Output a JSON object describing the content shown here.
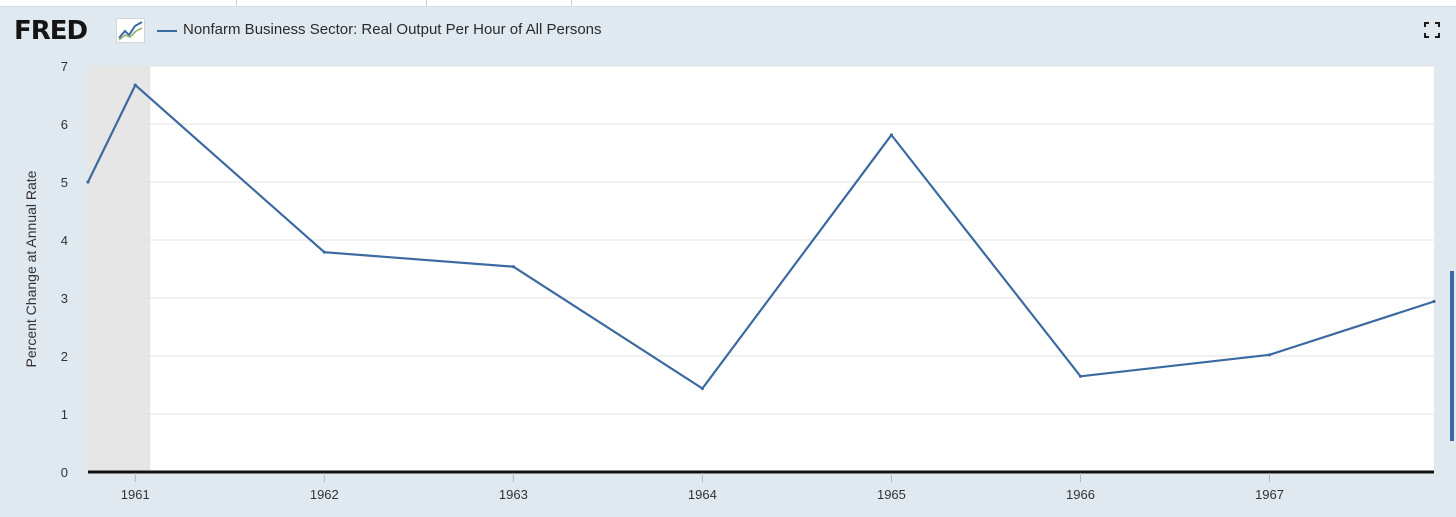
{
  "legend": {
    "series_label": "Nonfarm Business Sector: Real Output Per Hour of All Persons"
  },
  "colors": {
    "series": "#3c6aa0",
    "background": "#e1e9f0",
    "plot": "#ffffff",
    "recession": "#e6e6e6"
  },
  "icons": {
    "logo": "fred-logo",
    "logo_graph": "line-graph-icon",
    "fullscreen": "fullscreen-icon"
  },
  "chart_data": {
    "type": "line",
    "ylabel": "Percent Change at Annual Rate",
    "ylim": [
      0,
      7
    ],
    "yticks": [
      0,
      1,
      2,
      3,
      4,
      5,
      6,
      7
    ],
    "xlim": [
      1960.75,
      1967.87
    ],
    "xticks": [
      "1961",
      "1962",
      "1963",
      "1964",
      "1965",
      "1966",
      "1967"
    ],
    "grid": true,
    "recession_shading": [
      [
        1960.75,
        1961.08
      ]
    ],
    "series": [
      {
        "name": "Nonfarm Business Sector: Real Output Per Hour of All Persons",
        "x": [
          1960.75,
          1961,
          1962,
          1963,
          1964,
          1965,
          1966,
          1967,
          1967.87
        ],
        "values": [
          5.0,
          6.67,
          3.79,
          3.54,
          1.44,
          5.81,
          1.65,
          2.02,
          2.94
        ]
      }
    ]
  }
}
